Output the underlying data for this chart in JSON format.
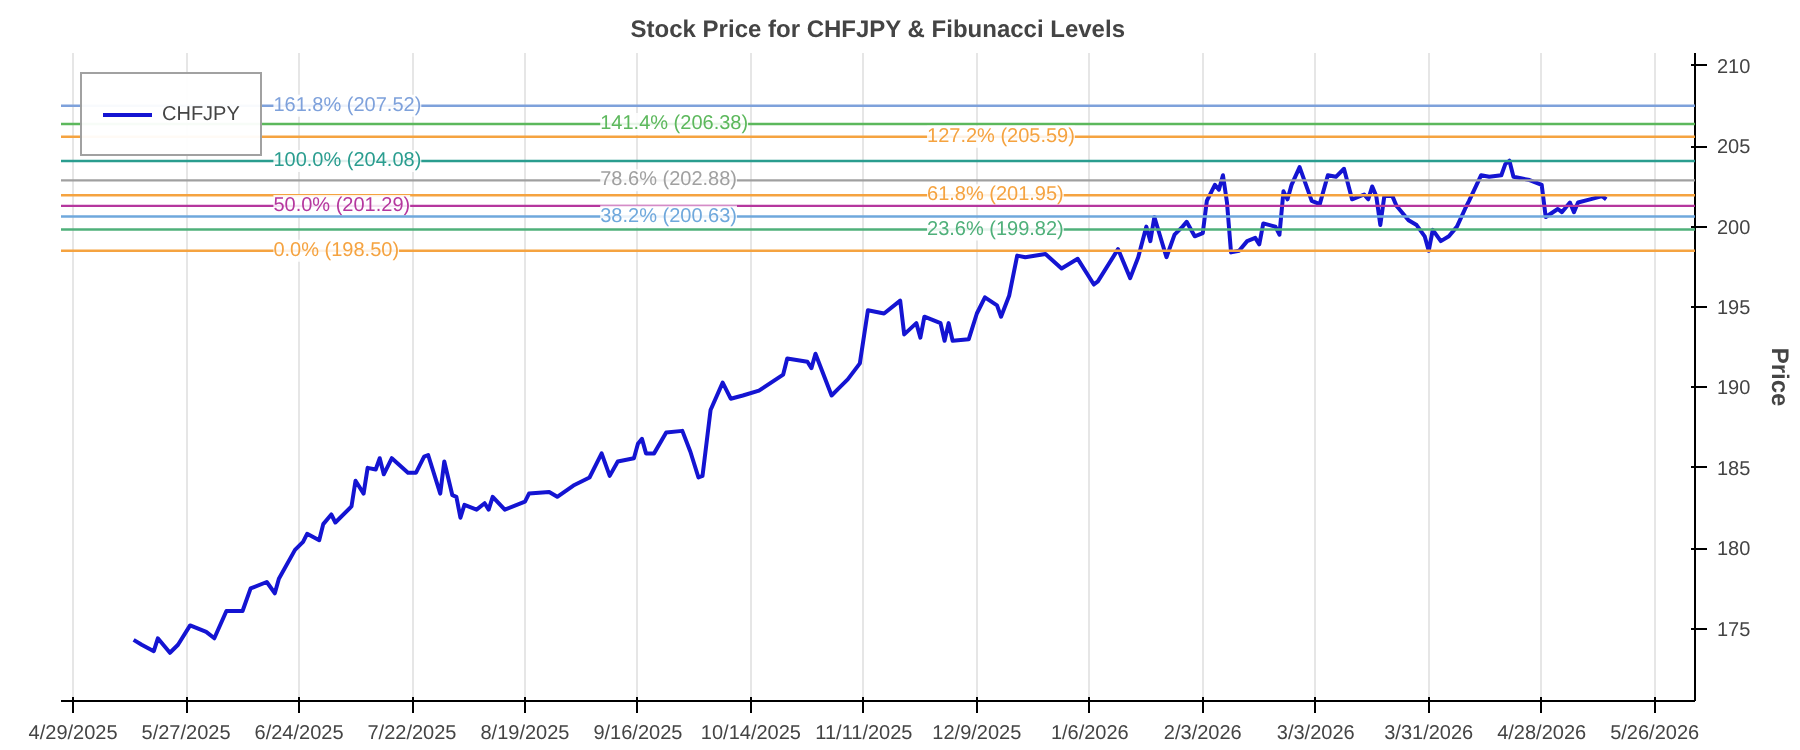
{
  "chart_data": {
    "type": "line",
    "title": "Stock Price for CHFJPY & Fibunacci Levels",
    "ylabel": "Price",
    "xlim": [
      "2025-04-26",
      "2026-06-05"
    ],
    "ylim": [
      170.5,
      210.8
    ],
    "xticks": [
      {
        "value": "2025-04-29",
        "label": "4/29/2025"
      },
      {
        "value": "2025-05-27",
        "label": "5/27/2025"
      },
      {
        "value": "2025-06-24",
        "label": "6/24/2025"
      },
      {
        "value": "2025-07-22",
        "label": "7/22/2025"
      },
      {
        "value": "2025-08-19",
        "label": "8/19/2025"
      },
      {
        "value": "2025-09-16",
        "label": "9/16/2025"
      },
      {
        "value": "2025-10-14",
        "label": "10/14/2025"
      },
      {
        "value": "2025-11-11",
        "label": "11/11/2025"
      },
      {
        "value": "2025-12-09",
        "label": "12/9/2025"
      },
      {
        "value": "2026-01-06",
        "label": "1/6/2026"
      },
      {
        "value": "2026-02-03",
        "label": "2/3/2026"
      },
      {
        "value": "2026-03-03",
        "label": "3/3/2026"
      },
      {
        "value": "2026-03-31",
        "label": "3/31/2026"
      },
      {
        "value": "2026-04-28",
        "label": "4/28/2026"
      },
      {
        "value": "2026-05-26",
        "label": "5/26/2026"
      }
    ],
    "yticks": [
      175,
      180,
      185,
      190,
      195,
      200,
      205,
      210
    ],
    "grid": "x",
    "legend": "top left",
    "line_style": "solid",
    "series": [
      {
        "name": "CHFJPY",
        "color": "#1414d2",
        "x": [
          "2025-05-14",
          "2025-05-16",
          "2025-05-19",
          "2025-05-20",
          "2025-05-23",
          "2025-05-25",
          "2025-05-28",
          "2025-06-01",
          "2025-06-03",
          "2025-06-06",
          "2025-06-10",
          "2025-06-12",
          "2025-06-16",
          "2025-06-18",
          "2025-06-19",
          "2025-06-23",
          "2025-06-25",
          "2025-06-26",
          "2025-06-29",
          "2025-06-30",
          "2025-07-02",
          "2025-07-03",
          "2025-07-07",
          "2025-07-08",
          "2025-07-10",
          "2025-07-11",
          "2025-07-13",
          "2025-07-14",
          "2025-07-15",
          "2025-07-17",
          "2025-07-21",
          "2025-07-23",
          "2025-07-25",
          "2025-07-26",
          "2025-07-29",
          "2025-07-30",
          "2025-08-01",
          "2025-08-02",
          "2025-08-03",
          "2025-08-04",
          "2025-08-07",
          "2025-08-09",
          "2025-08-10",
          "2025-08-11",
          "2025-08-14",
          "2025-08-19",
          "2025-08-20",
          "2025-08-25",
          "2025-08-27",
          "2025-08-31",
          "2025-09-04",
          "2025-09-07",
          "2025-09-09",
          "2025-09-11",
          "2025-09-15",
          "2025-09-16",
          "2025-09-17",
          "2025-09-18",
          "2025-09-20",
          "2025-09-23",
          "2025-09-27",
          "2025-09-29",
          "2025-10-01",
          "2025-10-02",
          "2025-10-04",
          "2025-10-07",
          "2025-10-09",
          "2025-10-12",
          "2025-10-16",
          "2025-10-22",
          "2025-10-23",
          "2025-10-28",
          "2025-10-29",
          "2025-10-30",
          "2025-11-03",
          "2025-11-05",
          "2025-11-07",
          "2025-11-10",
          "2025-11-12",
          "2025-11-16",
          "2025-11-20",
          "2025-11-21",
          "2025-11-24",
          "2025-11-25",
          "2025-11-26",
          "2025-11-30",
          "2025-12-01",
          "2025-12-02",
          "2025-12-03",
          "2025-12-07",
          "2025-12-09",
          "2025-12-11",
          "2025-12-14",
          "2025-12-15",
          "2025-12-17",
          "2025-12-19",
          "2025-12-21",
          "2025-12-26",
          "2025-12-30",
          "2026-01-03",
          "2026-01-07",
          "2026-01-08",
          "2026-01-13",
          "2026-01-16",
          "2026-01-18",
          "2026-01-20",
          "2026-01-21",
          "2026-01-22",
          "2026-01-25",
          "2026-01-27",
          "2026-01-29",
          "2026-01-30",
          "2026-02-01",
          "2026-02-03",
          "2026-02-04",
          "2026-02-06",
          "2026-02-07",
          "2026-02-08",
          "2026-02-09",
          "2026-02-10",
          "2026-02-12",
          "2026-02-14",
          "2026-02-16",
          "2026-02-17",
          "2026-02-18",
          "2026-02-21",
          "2026-02-22",
          "2026-02-23",
          "2026-02-24",
          "2026-02-25",
          "2026-02-27",
          "2026-03-02",
          "2026-03-04",
          "2026-03-06",
          "2026-03-08",
          "2026-03-10",
          "2026-03-12",
          "2026-03-15",
          "2026-03-16",
          "2026-03-17",
          "2026-03-18",
          "2026-03-19",
          "2026-03-20",
          "2026-03-22",
          "2026-03-23",
          "2026-03-26",
          "2026-03-28",
          "2026-03-30",
          "2026-03-31",
          "2026-04-01",
          "2026-04-03",
          "2026-04-05",
          "2026-04-07",
          "2026-04-09",
          "2026-04-10",
          "2026-04-13",
          "2026-04-15",
          "2026-04-18",
          "2026-04-19",
          "2026-04-20",
          "2026-04-21",
          "2026-04-25",
          "2026-04-28",
          "2026-04-29",
          "2026-05-02",
          "2026-05-03",
          "2026-05-05",
          "2026-05-06",
          "2026-05-07",
          "2026-05-10",
          "2026-05-13",
          "2026-05-14"
        ],
        "values": [
          174.3,
          174.0,
          173.6,
          174.4,
          173.5,
          174.0,
          175.2,
          174.8,
          174.4,
          176.1,
          176.1,
          177.5,
          177.9,
          177.2,
          178.1,
          179.9,
          180.4,
          180.9,
          180.5,
          181.5,
          182.1,
          181.6,
          182.6,
          184.2,
          183.4,
          185.0,
          184.9,
          185.6,
          184.6,
          185.6,
          184.7,
          184.7,
          185.7,
          185.8,
          183.4,
          185.4,
          183.3,
          183.2,
          181.9,
          182.7,
          182.4,
          182.8,
          182.4,
          183.2,
          182.4,
          182.9,
          183.4,
          183.5,
          183.2,
          183.9,
          184.4,
          185.9,
          184.5,
          185.4,
          185.6,
          186.5,
          186.8,
          185.9,
          185.9,
          187.2,
          187.3,
          186.0,
          184.4,
          184.5,
          188.6,
          190.3,
          189.3,
          189.5,
          189.8,
          190.8,
          191.8,
          191.6,
          191.2,
          192.1,
          189.5,
          190.0,
          190.5,
          191.5,
          194.8,
          194.6,
          195.4,
          193.3,
          194.0,
          193.1,
          194.4,
          194.0,
          192.9,
          194.0,
          192.9,
          193.0,
          194.6,
          195.6,
          195.1,
          194.4,
          195.7,
          198.2,
          198.1,
          198.3,
          197.4,
          198.0,
          196.4,
          196.6,
          198.6,
          196.8,
          198.1,
          200.0,
          199.1,
          200.6,
          198.1,
          199.5,
          200.0,
          200.3,
          199.4,
          199.6,
          201.6,
          202.6,
          202.3,
          203.2,
          201.5,
          198.4,
          198.5,
          199.1,
          199.3,
          198.9,
          200.2,
          200.0,
          199.5,
          202.2,
          201.7,
          202.6,
          203.7,
          201.6,
          201.4,
          203.2,
          203.1,
          203.6,
          201.7,
          202.0,
          201.7,
          202.5,
          201.9,
          200.1,
          201.9,
          201.9,
          201.3,
          200.4,
          200.1,
          199.4,
          198.5,
          199.8,
          199.1,
          199.4,
          200.0,
          201.1,
          201.6,
          203.2,
          203.1,
          203.2,
          203.9,
          204.1,
          203.1,
          202.9,
          202.6,
          200.6,
          201.1,
          200.9,
          201.5,
          200.9,
          201.5,
          201.7,
          201.9,
          201.7
        ]
      }
    ],
    "ref_lines": [
      {
        "axis": "y",
        "value": 207.52,
        "label": "161.8% (207.52)",
        "color": "#7ea1db"
      },
      {
        "axis": "y",
        "value": 206.38,
        "label": "141.4% (206.38)",
        "color": "#5cb85c"
      },
      {
        "axis": "y",
        "value": 205.59,
        "label": "127.2% (205.59)",
        "color": "#f5a340"
      },
      {
        "axis": "y",
        "value": 204.08,
        "label": "100.0% (204.08)",
        "color": "#2a9d8f"
      },
      {
        "axis": "y",
        "value": 202.88,
        "label": "78.6% (202.88)",
        "color": "#a0a0a0"
      },
      {
        "axis": "y",
        "value": 201.95,
        "label": "61.8% (201.95)",
        "color": "#f5a340"
      },
      {
        "axis": "y",
        "value": 201.29,
        "label": "50.0% (201.29)",
        "color": "#b5379e"
      },
      {
        "axis": "y",
        "value": 200.63,
        "label": "38.2% (200.63)",
        "color": "#6fa8dc"
      },
      {
        "axis": "y",
        "value": 199.82,
        "label": "23.6% (199.82)",
        "color": "#4fb07a"
      },
      {
        "axis": "y",
        "value": 198.5,
        "label": "0.0% (198.50)",
        "color": "#f5a340"
      }
    ]
  }
}
